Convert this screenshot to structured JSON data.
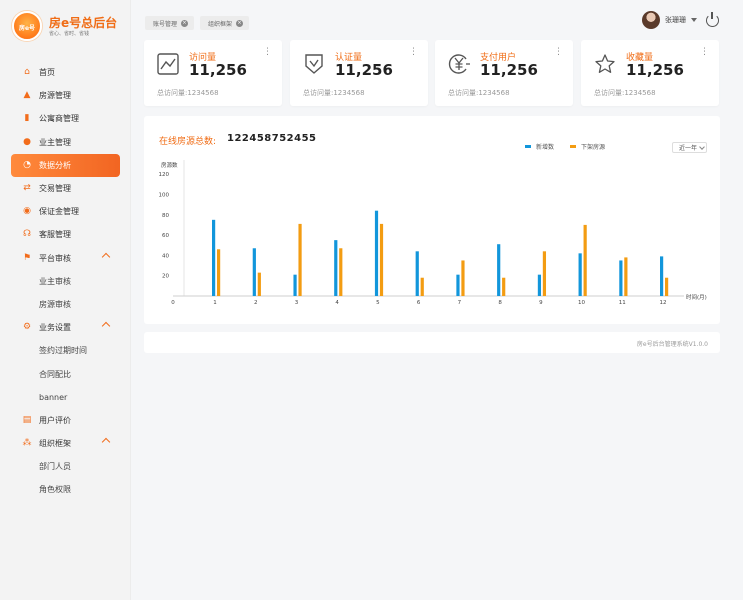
{
  "brand": {
    "logo_text": "房e号",
    "title": "房e号总后台",
    "subtitle": "省心、省时、省钱"
  },
  "colors": {
    "accent": "#f26c1b",
    "series_new": "#1296db",
    "series_down": "#f39c12"
  },
  "sidebar": {
    "items": [
      {
        "label": "首页",
        "icon": "home-icon"
      },
      {
        "label": "房源管理",
        "icon": "house-icon"
      },
      {
        "label": "公寓商管理",
        "icon": "building-icon"
      },
      {
        "label": "业主管理",
        "icon": "user-icon"
      },
      {
        "label": "数据分析",
        "icon": "pie-chart-icon"
      },
      {
        "label": "交易管理",
        "icon": "exchange-icon"
      },
      {
        "label": "保证金管理",
        "icon": "deposit-icon"
      },
      {
        "label": "客服管理",
        "icon": "headset-icon"
      },
      {
        "label": "平台审核",
        "icon": "flag-icon"
      },
      {
        "label": "业主审核"
      },
      {
        "label": "房源审核"
      },
      {
        "label": "业务设置",
        "icon": "gear-icon"
      },
      {
        "label": "签约过期时间"
      },
      {
        "label": "合同配比"
      },
      {
        "label": "banner"
      },
      {
        "label": "用户评价",
        "icon": "comment-icon"
      },
      {
        "label": "组织框架",
        "icon": "org-icon"
      },
      {
        "label": "部门人员"
      },
      {
        "label": "角色权限"
      }
    ]
  },
  "tabs": [
    {
      "label": "账号管理"
    },
    {
      "label": "组织框架"
    }
  ],
  "user": {
    "name": "张珊珊"
  },
  "stats": [
    {
      "title": "访问量",
      "value": "11,256",
      "footer": "总访问量:1234568",
      "icon": "line-chart-icon"
    },
    {
      "title": "认证量",
      "value": "11,256",
      "footer": "总访问量:1234568",
      "icon": "shield-check-icon"
    },
    {
      "title": "支付用户",
      "value": "11,256",
      "footer": "总访问量:1234568",
      "icon": "yuan-icon"
    },
    {
      "title": "收藏量",
      "value": "11,256",
      "footer": "总访问量:1234568",
      "icon": "star-icon"
    }
  ],
  "panel": {
    "title": "在线房源总数:",
    "total": "122458752455",
    "range_label": "近一年"
  },
  "chart_data": {
    "type": "bar",
    "title": "在线房源总数:",
    "ylabel": "房源数",
    "xlabel": "时间(月)",
    "x_zero_label": "0",
    "categories": [
      "1",
      "2",
      "3",
      "4",
      "5",
      "6",
      "7",
      "8",
      "9",
      "10",
      "11",
      "12"
    ],
    "yticks": [
      "20",
      "40",
      "60",
      "80",
      "100",
      "120"
    ],
    "ylim": [
      0,
      128
    ],
    "grid": false,
    "legend": "top-right",
    "series": [
      {
        "name": "新增数",
        "color": "#1296db",
        "values": [
          75,
          47,
          21,
          55,
          84,
          44,
          21,
          51,
          21,
          42,
          35,
          39
        ]
      },
      {
        "name": "下架房源",
        "color": "#f39c12",
        "values": [
          46,
          23,
          71,
          47,
          71,
          18,
          35,
          18,
          44,
          70,
          38,
          18
        ]
      }
    ]
  },
  "footer": {
    "text": "房e号后台管理系统V1.0.0"
  }
}
